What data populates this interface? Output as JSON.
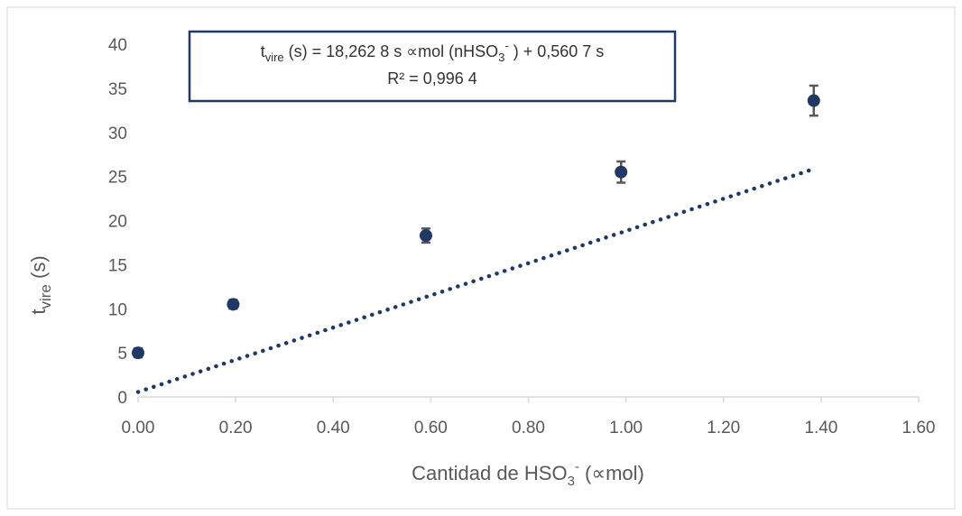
{
  "chart_data": {
    "type": "scatter",
    "xlabel": {
      "main": "Cantidad de HSO",
      "sub": "3",
      "sup": "-",
      "tail": " (∝mol)"
    },
    "ylabel": {
      "main": "t",
      "sub": "vire",
      "tail": " (s)"
    },
    "xlim": [
      0,
      1.6
    ],
    "ylim": [
      0,
      40
    ],
    "x_ticks": [
      "0.00",
      "0.20",
      "0.40",
      "0.60",
      "0.80",
      "1.00",
      "1.20",
      "1.40",
      "1.60"
    ],
    "y_ticks": [
      "0",
      "5",
      "10",
      "15",
      "20",
      "25",
      "30",
      "35",
      "40"
    ],
    "grid": false,
    "legend": "none",
    "points": [
      {
        "x": 0.0,
        "y": 5.0,
        "err": 0.5
      },
      {
        "x": 0.195,
        "y": 10.5,
        "err": 0.5
      },
      {
        "x": 0.59,
        "y": 18.3,
        "err": 0.8
      },
      {
        "x": 0.99,
        "y": 25.5,
        "err": 1.2
      },
      {
        "x": 1.385,
        "y": 33.6,
        "err": 1.7
      }
    ],
    "trendline": {
      "type": "linear",
      "slope": 18.2628,
      "intercept": 0.5607,
      "x_range": [
        0,
        1.385
      ],
      "style": "dotted",
      "equation": {
        "t": "t",
        "vire": "vire",
        "after_vire": " (s)  = 18,262 8 s ∝mol (nHSO",
        "sub3": "3",
        "supminus": "-",
        "end": " )  + 0,560 7 s"
      },
      "r_squared_label": "R² = 0,996 4"
    },
    "colors": {
      "marker": "#1f3864",
      "trendline": "#1f3864",
      "error_bar": "#595959",
      "axis": "#d9d9d9",
      "text": "#595959",
      "box_border": "#1f3864"
    }
  }
}
